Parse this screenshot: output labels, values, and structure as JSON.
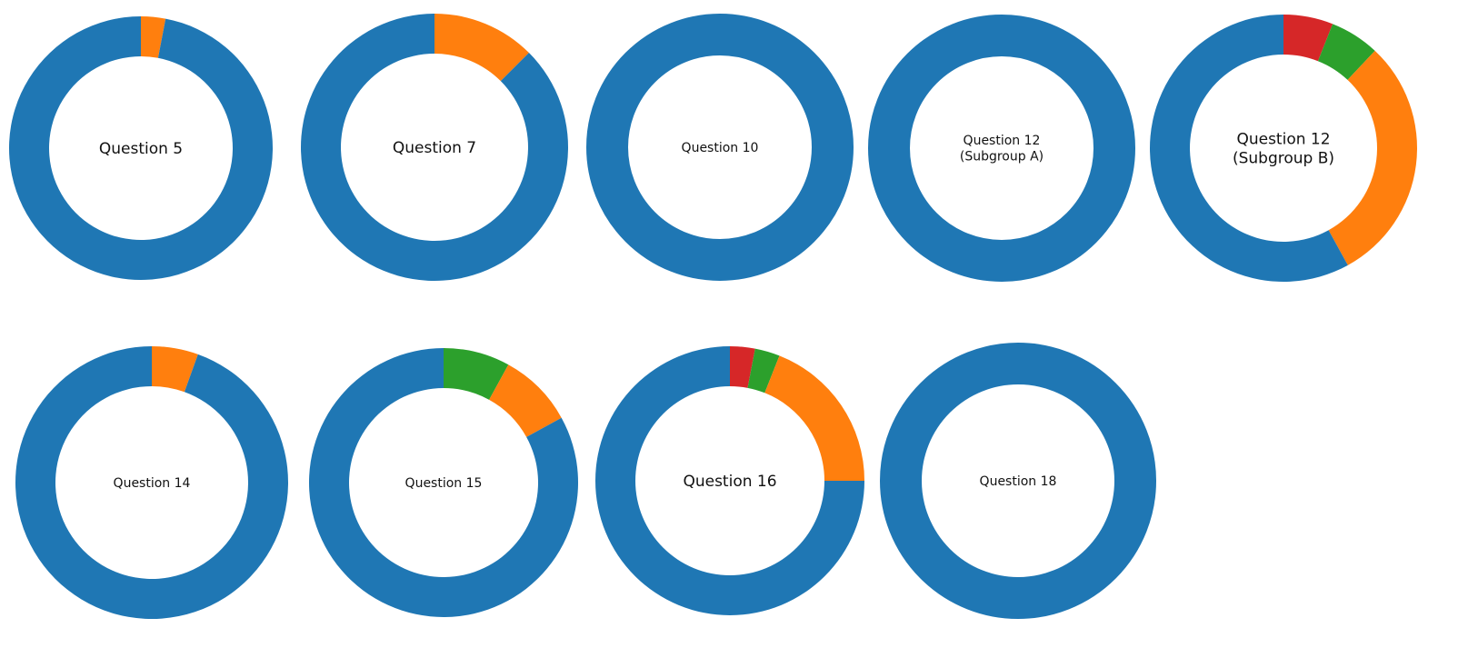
{
  "colors": {
    "blue": "#1f77b4",
    "orange": "#ff7f0e",
    "green": "#2ca02c",
    "red": "#d62728"
  },
  "chart_data": [
    {
      "type": "pie",
      "title": [
        "Question 5"
      ],
      "slices": [
        {
          "color": "orange",
          "value": 3
        },
        {
          "color": "blue",
          "value": 97
        }
      ]
    },
    {
      "type": "pie",
      "title": [
        "Question 7"
      ],
      "slices": [
        {
          "color": "orange",
          "value": 12.5
        },
        {
          "color": "blue",
          "value": 87.5
        }
      ]
    },
    {
      "type": "pie",
      "title": [
        "Question 10"
      ],
      "slices": [
        {
          "color": "blue",
          "value": 100
        }
      ]
    },
    {
      "type": "pie",
      "title": [
        "Question 12",
        "(Subgroup A)"
      ],
      "slices": [
        {
          "color": "blue",
          "value": 100
        }
      ]
    },
    {
      "type": "pie",
      "title": [
        "Question 12",
        "(Subgroup B)"
      ],
      "slices": [
        {
          "color": "red",
          "value": 6
        },
        {
          "color": "green",
          "value": 6
        },
        {
          "color": "orange",
          "value": 30
        },
        {
          "color": "blue",
          "value": 58
        }
      ]
    },
    {
      "type": "pie",
      "title": [
        "Question 14"
      ],
      "slices": [
        {
          "color": "orange",
          "value": 5.5
        },
        {
          "color": "blue",
          "value": 94.5
        }
      ]
    },
    {
      "type": "pie",
      "title": [
        "Question 15"
      ],
      "slices": [
        {
          "color": "green",
          "value": 8
        },
        {
          "color": "orange",
          "value": 9
        },
        {
          "color": "blue",
          "value": 83
        }
      ]
    },
    {
      "type": "pie",
      "title": [
        "Question 16"
      ],
      "slices": [
        {
          "color": "red",
          "value": 3
        },
        {
          "color": "green",
          "value": 3
        },
        {
          "color": "orange",
          "value": 19
        },
        {
          "color": "blue",
          "value": 75
        }
      ]
    },
    {
      "type": "pie",
      "title": [
        "Question 18"
      ],
      "slices": [
        {
          "color": "blue",
          "value": 100
        }
      ]
    }
  ]
}
